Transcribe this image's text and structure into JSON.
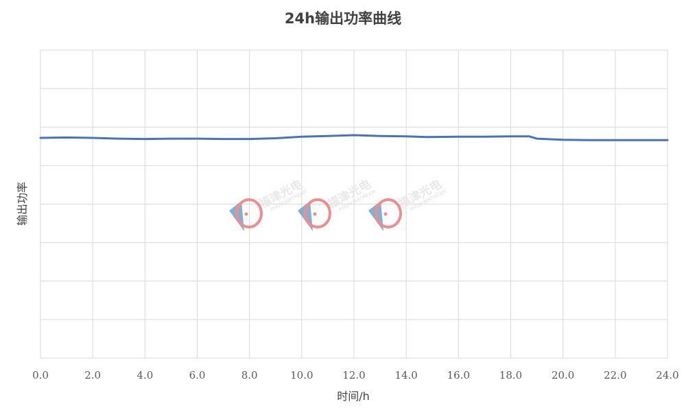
{
  "chart_data": {
    "type": "line",
    "title": "24h输出功率曲线",
    "xlabel": "时间/h",
    "ylabel": "输出功率",
    "xlim": [
      0,
      24
    ],
    "ylim": [
      0,
      8
    ],
    "x_ticks": [
      "0.0",
      "2.0",
      "4.0",
      "6.0",
      "8.0",
      "10.0",
      "12.0",
      "14.0",
      "16.0",
      "18.0",
      "20.0",
      "22.0",
      "24.0"
    ],
    "y_tick_labels_shown": false,
    "grid": true,
    "series": [
      {
        "color": "#4472c4",
        "x": [
          0,
          1,
          2,
          3,
          4,
          5,
          6,
          7,
          8,
          9,
          10,
          11,
          12,
          13,
          14,
          14.8,
          16,
          17,
          18,
          18.7,
          19,
          20,
          21,
          22,
          23,
          24
        ],
        "y": [
          5.72,
          5.73,
          5.72,
          5.7,
          5.69,
          5.7,
          5.7,
          5.69,
          5.69,
          5.71,
          5.75,
          5.77,
          5.79,
          5.77,
          5.76,
          5.74,
          5.75,
          5.75,
          5.76,
          5.76,
          5.7,
          5.67,
          5.66,
          5.66,
          5.66,
          5.66
        ]
      }
    ]
  },
  "watermark": {
    "brand_cn": "福津光电",
    "brand_en": "PHOTONSTREAM",
    "count": 3,
    "colors": {
      "ring": "#f08080",
      "wedge": "#5b9bc6"
    }
  }
}
